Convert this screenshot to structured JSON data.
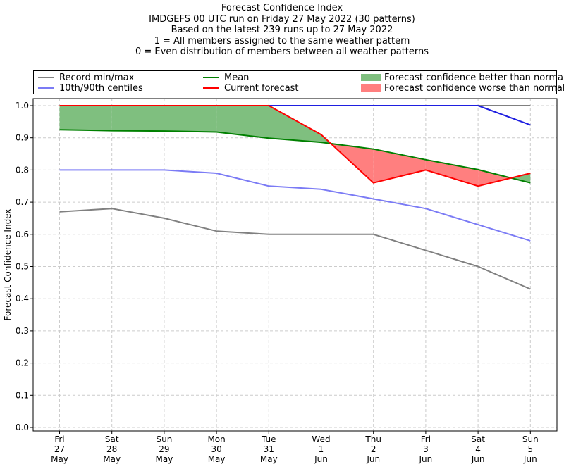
{
  "title_lines": [
    "Forecast Confidence Index",
    "IMDGEFS 00 UTC run on Friday 27 May 2022 (30 patterns)",
    "Based on the latest 239 runs up to 27 May 2022",
    "1 = All members assigned to the same weather pattern",
    "0 = Even distribution of members between all weather patterns"
  ],
  "legend": {
    "record": "Record min/max",
    "centiles": "10th/90th centiles",
    "mean": "Mean",
    "current": "Current forecast",
    "better": "Forecast confidence better than normal",
    "worse": "Forecast confidence worse than normal"
  },
  "colors": {
    "record": "#808080",
    "centiles": "#7b7bf5",
    "max_blue": "#1f1fe0",
    "mean": "#008000",
    "current": "#ff0000",
    "better_fill": "#7fbf7f",
    "worse_fill": "#ff7f7f",
    "grid": "#cccccc"
  },
  "chart_data": {
    "type": "line",
    "ylabel": "Forecast Confidence Index",
    "ylim": [
      0,
      1
    ],
    "yticks": [
      "0.0",
      "0.1",
      "0.2",
      "0.3",
      "0.4",
      "0.5",
      "0.6",
      "0.7",
      "0.8",
      "0.9",
      "1.0"
    ],
    "categories": [
      [
        "Fri",
        "27",
        "May"
      ],
      [
        "Sat",
        "28",
        "May"
      ],
      [
        "Sun",
        "29",
        "May"
      ],
      [
        "Mon",
        "30",
        "May"
      ],
      [
        "Tue",
        "31",
        "May"
      ],
      [
        "Wed",
        "1",
        "Jun"
      ],
      [
        "Thu",
        "2",
        "Jun"
      ],
      [
        "Fri",
        "3",
        "Jun"
      ],
      [
        "Sat",
        "4",
        "Jun"
      ],
      [
        "Sun",
        "5",
        "Jun"
      ]
    ],
    "series": [
      {
        "name": "Record min/max",
        "values": [
          0.67,
          0.68,
          0.65,
          0.61,
          0.6,
          0.6,
          0.6,
          0.55,
          0.5,
          0.43
        ]
      },
      {
        "name": "Record min/max",
        "values": [
          1.0,
          1.0,
          1.0,
          1.0,
          1.0,
          1.0,
          1.0,
          1.0,
          1.0,
          1.0
        ]
      },
      {
        "name": "10th/90th centiles",
        "values": [
          0.8,
          0.8,
          0.8,
          0.79,
          0.75,
          0.74,
          0.71,
          0.68,
          0.63,
          0.58
        ]
      },
      {
        "name": "10th/90th centiles",
        "values": [
          1.0,
          1.0,
          1.0,
          1.0,
          1.0,
          1.0,
          1.0,
          1.0,
          1.0,
          0.94
        ]
      },
      {
        "name": "Mean",
        "values": [
          0.925,
          0.922,
          0.921,
          0.918,
          0.899,
          0.886,
          0.865,
          0.832,
          0.801,
          0.76
        ]
      },
      {
        "name": "Current forecast",
        "values": [
          1.0,
          1.0,
          1.0,
          1.0,
          1.0,
          0.91,
          0.76,
          0.8,
          0.75,
          0.79
        ]
      }
    ],
    "grid": true,
    "legend_position": "top"
  }
}
